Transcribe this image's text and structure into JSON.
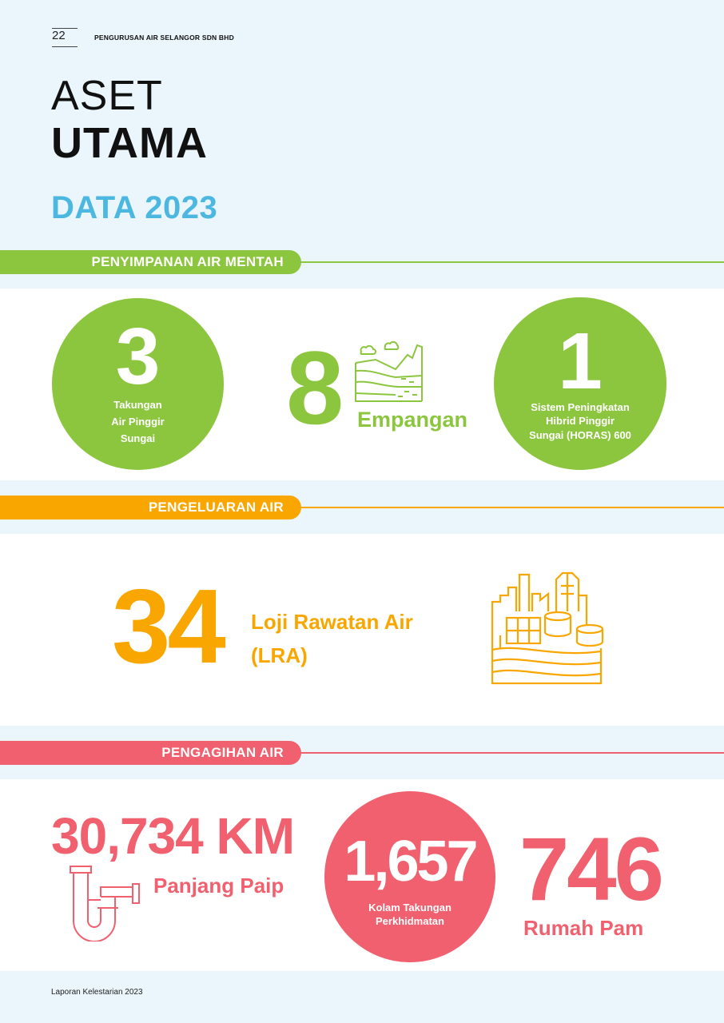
{
  "header": {
    "page_number": "22",
    "company": "PENGURUSAN AIR SELANGOR SDN BHD"
  },
  "title": {
    "line1": "ASET",
    "line2": "UTAMA",
    "subtitle": "DATA 2023"
  },
  "sections": {
    "raw_water": {
      "label": "PENYIMPANAN AIR MENTAH",
      "color": "#8cc63f",
      "items": [
        {
          "value": "3",
          "label_lines": [
            "Takungan",
            "Air Pinggir",
            "Sungai"
          ]
        },
        {
          "value": "8",
          "label": "Empangan",
          "icon": "dam-icon"
        },
        {
          "value": "1",
          "label_lines": [
            "Sistem Peningkatan",
            "Hibrid Pinggir",
            "Sungai (HORAS) 600"
          ]
        }
      ]
    },
    "production": {
      "label": "PENGELUARAN AIR",
      "color": "#f9a600",
      "value": "34",
      "label_lines": [
        "Loji Rawatan Air",
        "(LRA)"
      ],
      "icon": "water-treatment-plant-icon"
    },
    "distribution": {
      "label": "PENGAGIHAN AIR",
      "color": "#f0606e",
      "items": [
        {
          "value": "30,734 KM",
          "label": "Panjang Paip",
          "icon": "pipe-icon"
        },
        {
          "value": "1,657",
          "label_lines": [
            "Kolam Takungan",
            "Perkhidmatan"
          ]
        },
        {
          "value": "746",
          "label": "Rumah Pam"
        }
      ]
    }
  },
  "footer": {
    "text": "Laporan Kelestarian 2023"
  }
}
